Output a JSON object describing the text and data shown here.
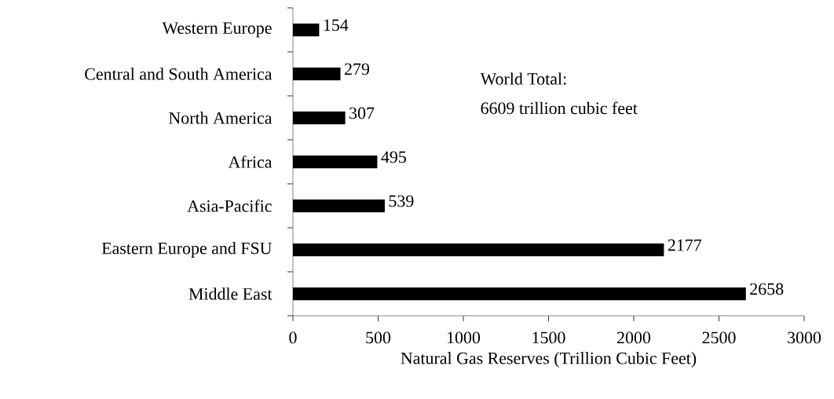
{
  "chart_data": {
    "type": "bar",
    "orientation": "horizontal",
    "categories": [
      "Western Europe",
      "Central and South America",
      "North America",
      "Africa",
      "Asia-Pacific",
      "Eastern Europe and FSU",
      "Middle East"
    ],
    "values": [
      154,
      279,
      307,
      495,
      539,
      2177,
      2658
    ],
    "color": "#000000",
    "xlim": [
      0,
      3000
    ],
    "xticks": [
      0,
      500,
      1000,
      1500,
      2000,
      2500,
      3000
    ],
    "xlabel": "Natural Gas Reserves (Trillion Cubic Feet)",
    "data_labels": true,
    "annotations": [
      "World Total:",
      "6609 trillion cubic feet"
    ]
  }
}
